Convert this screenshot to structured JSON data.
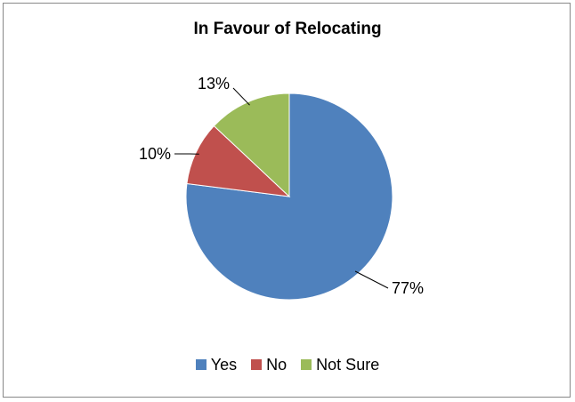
{
  "chart_data": {
    "type": "pie",
    "title": "In Favour of Relocating",
    "categories": [
      "Yes",
      "No",
      "Not Sure"
    ],
    "values": [
      77,
      10,
      13
    ],
    "labels": [
      "77%",
      "10%",
      "13%"
    ],
    "colors": [
      "#4F81BD",
      "#C0504D",
      "#9BBB59"
    ],
    "legend_position": "bottom"
  }
}
